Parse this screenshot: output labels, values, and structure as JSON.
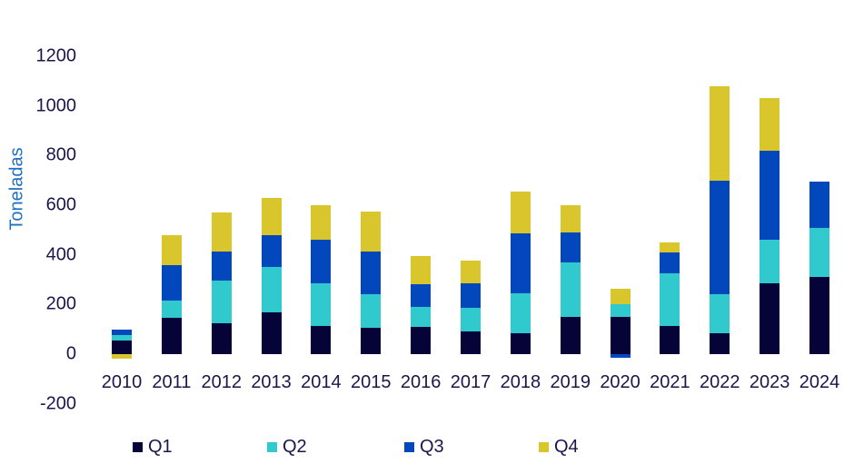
{
  "chart_data": {
    "type": "bar",
    "stacked": true,
    "title": "",
    "xlabel": "",
    "ylabel": "Toneladas",
    "ylim": [
      -200,
      1200
    ],
    "yticks": [
      1200,
      1000,
      800,
      600,
      400,
      200,
      0,
      -200
    ],
    "grid": false,
    "legend_position": "bottom",
    "categories": [
      "2010",
      "2011",
      "2012",
      "2013",
      "2014",
      "2015",
      "2016",
      "2017",
      "2018",
      "2019",
      "2020",
      "2021",
      "2022",
      "2023",
      "2024"
    ],
    "series": [
      {
        "name": "Q1",
        "color": "#050337",
        "values": [
          55,
          145,
          125,
          170,
          115,
          105,
          110,
          90,
          85,
          150,
          150,
          115,
          85,
          285,
          310
        ]
      },
      {
        "name": "Q2",
        "color": "#2FC9CE",
        "values": [
          20,
          70,
          170,
          180,
          170,
          135,
          80,
          95,
          160,
          220,
          50,
          210,
          155,
          175,
          200
        ]
      },
      {
        "name": "Q3",
        "color": "#0247BB",
        "values": [
          25,
          145,
          120,
          130,
          175,
          175,
          90,
          100,
          240,
          120,
          -15,
          85,
          460,
          360,
          185
        ]
      },
      {
        "name": "Q4",
        "color": "#D8C62C",
        "values": [
          -20,
          120,
          155,
          150,
          140,
          160,
          115,
          90,
          170,
          110,
          65,
          40,
          380,
          210,
          0
        ]
      }
    ]
  }
}
